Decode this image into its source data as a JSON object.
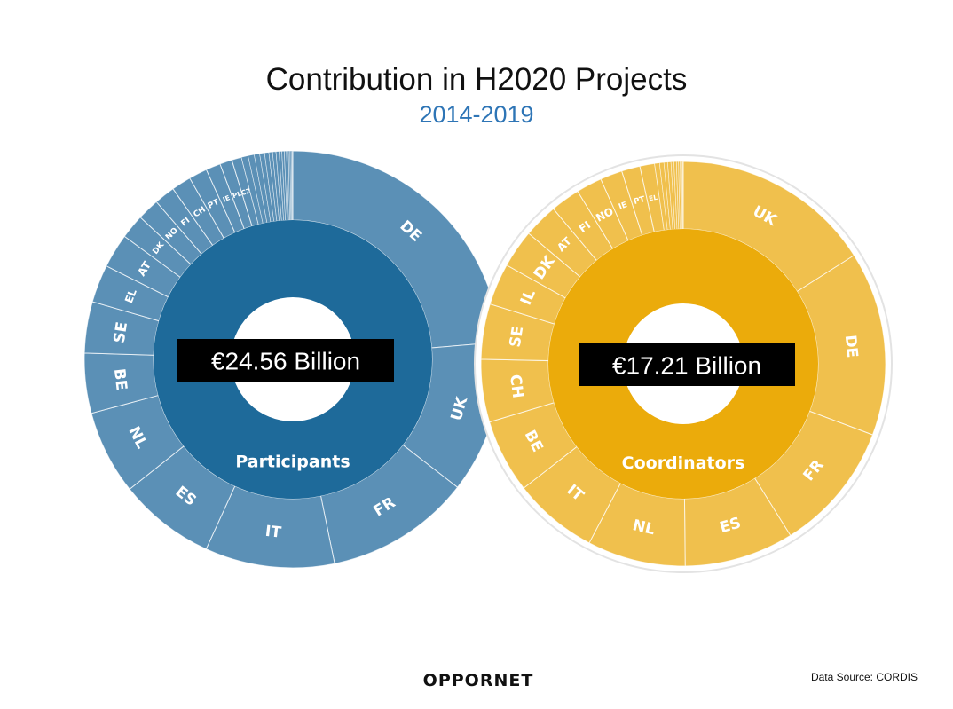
{
  "title": "Contribution in H2020 Projects",
  "subtitle": "2014-2019",
  "chart_data": [
    {
      "type": "donut",
      "inner_label": "Participants",
      "total_label": "€24.56 Billion",
      "inner_color": "#1e6a9a",
      "outer_color": "#5b90b6",
      "categories": [
        "DE",
        "UK",
        "FR",
        "IT",
        "ES",
        "NL",
        "BE",
        "SE",
        "EL",
        "AT",
        "DK",
        "NO",
        "FI",
        "CH",
        "PT",
        "IE",
        "PL",
        "CZ"
      ],
      "values": [
        25.0,
        12.5,
        11.9,
        10.6,
        7.9,
        6.9,
        4.9,
        4.2,
        3.1,
        2.8,
        2.0,
        1.8,
        1.7,
        1.6,
        1.5,
        1.2,
        1.0,
        0.8
      ],
      "others": [
        0.55,
        0.5,
        0.45,
        0.4,
        0.35,
        0.3,
        0.28,
        0.25,
        0.22,
        0.2,
        0.18,
        0.15,
        0.13,
        0.1,
        0.08,
        0.05
      ]
    },
    {
      "type": "donut",
      "inner_label": "Coordinators",
      "total_label": "€17.21 Billion",
      "inner_color": "#ebab0b",
      "outer_color": "#f0c04d",
      "categories": [
        "UK",
        "DE",
        "FR",
        "ES",
        "NL",
        "IT",
        "BE",
        "CH",
        "SE",
        "IL",
        "DK",
        "AT",
        "FI",
        "NO",
        "IE",
        "PT",
        "EL"
      ],
      "values": [
        16.3,
        15.0,
        10.6,
        8.9,
        8.0,
        6.9,
        6.0,
        5.1,
        4.5,
        3.4,
        3.1,
        2.8,
        2.4,
        2.1,
        1.8,
        1.5,
        1.2
      ],
      "others": [
        0.4,
        0.35,
        0.3,
        0.27,
        0.24,
        0.2,
        0.17,
        0.14,
        0.11,
        0.08,
        0.05
      ]
    }
  ],
  "logo": "OPPORNET",
  "source": "Data Source: CORDIS"
}
